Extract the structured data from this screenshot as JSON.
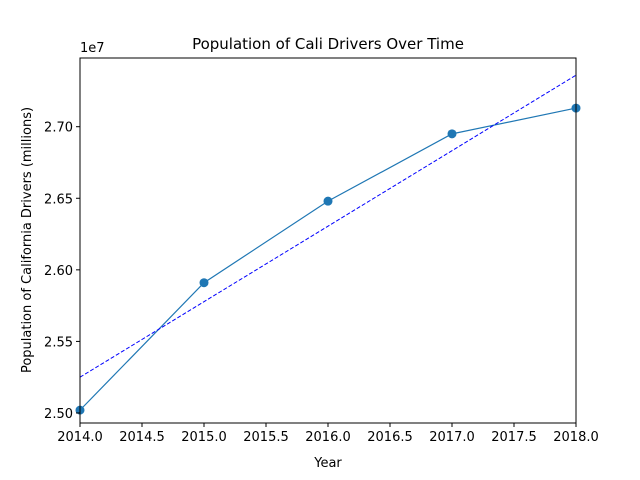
{
  "chart_data": {
    "type": "line",
    "title": "Population of Cali Drivers Over Time",
    "xlabel": "Year",
    "ylabel": "Population of California Drivers (millions)",
    "y_offset_label": "1e7",
    "xlim": [
      2014.0,
      2018.0
    ],
    "ylim": [
      24.93,
      27.48
    ],
    "x_ticks": [
      2014.0,
      2014.5,
      2015.0,
      2015.5,
      2016.0,
      2016.5,
      2017.0,
      2017.5,
      2018.0
    ],
    "x_tick_labels": [
      "2014.0",
      "2014.5",
      "2015.0",
      "2015.5",
      "2016.0",
      "2016.5",
      "2017.0",
      "2017.5",
      "2018.0"
    ],
    "y_ticks": [
      25.0,
      25.5,
      26.0,
      26.5,
      27.0
    ],
    "y_tick_labels": [
      "2.50",
      "2.55",
      "2.60",
      "2.65",
      "2.70"
    ],
    "grid": false,
    "series": [
      {
        "style": "solid-with-markers",
        "color": "#1f77b4",
        "x": [
          2014,
          2015,
          2016,
          2017,
          2018
        ],
        "y": [
          25.02,
          25.91,
          26.48,
          26.95,
          27.13
        ]
      },
      {
        "style": "dashed-trend",
        "color": "#0000ff",
        "x": [
          2014,
          2018
        ],
        "y": [
          25.25,
          27.36
        ]
      }
    ]
  }
}
